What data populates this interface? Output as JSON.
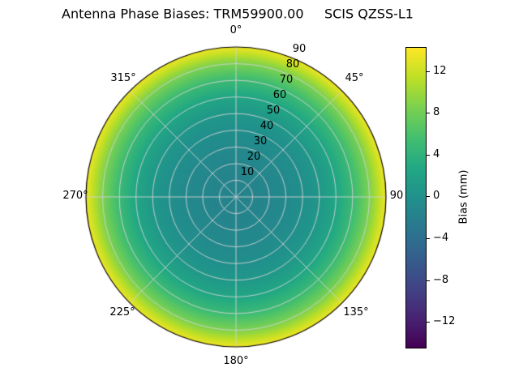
{
  "chart_data": {
    "type": "heatmap",
    "projection": "polar",
    "title": "Antenna Phase Biases: TRM59900.00     SCIS QZSS-L1",
    "theta_direction": "clockwise",
    "theta_zero_location": "top",
    "angular_ticks": [
      {
        "deg": 0,
        "label": "0°"
      },
      {
        "deg": 45,
        "label": "45°"
      },
      {
        "deg": 90,
        "label": "90"
      },
      {
        "deg": 135,
        "label": "135°"
      },
      {
        "deg": 180,
        "label": "180°"
      },
      {
        "deg": 225,
        "label": "225°"
      },
      {
        "deg": 270,
        "label": "270°"
      },
      {
        "deg": 315,
        "label": "315°"
      }
    ],
    "radial_ticks": [
      10,
      20,
      30,
      40,
      50,
      60,
      70,
      80,
      90
    ],
    "radial_axis_max": 90,
    "radial_label_angle_deg": 22.5,
    "grid": true,
    "grid_color": "#d2d2d2",
    "outline_color": "#000000",
    "series": {
      "name": "phase-bias-vs-zenith",
      "zenith_deg": [
        0,
        10,
        20,
        30,
        40,
        50,
        60,
        70,
        80,
        90
      ],
      "bias_mm": [
        -1.5,
        -1.5,
        -1.2,
        -0.8,
        -0.2,
        0.8,
        2.5,
        5.0,
        8.5,
        13.5
      ],
      "azimuthally_symmetric": true
    },
    "colorbar": {
      "label": "Bias (mm)",
      "tick_values": [
        12,
        8,
        4,
        0,
        -4,
        -8,
        -12
      ],
      "tick_labels": [
        "12",
        "8",
        "4",
        "0",
        "−4",
        "−8",
        "−12"
      ],
      "vmin": -14.3,
      "vmax": 14.3,
      "colormap": "viridis",
      "viridis_stops": [
        [
          0.0,
          "#440154"
        ],
        [
          0.1,
          "#482475"
        ],
        [
          0.2,
          "#414487"
        ],
        [
          0.3,
          "#355f8d"
        ],
        [
          0.4,
          "#2a788e"
        ],
        [
          0.5,
          "#21918c"
        ],
        [
          0.6,
          "#22a884"
        ],
        [
          0.7,
          "#44bf70"
        ],
        [
          0.8,
          "#7ad151"
        ],
        [
          0.9,
          "#bddf26"
        ],
        [
          1.0,
          "#fde725"
        ]
      ]
    },
    "background_color": "#ffffff"
  }
}
